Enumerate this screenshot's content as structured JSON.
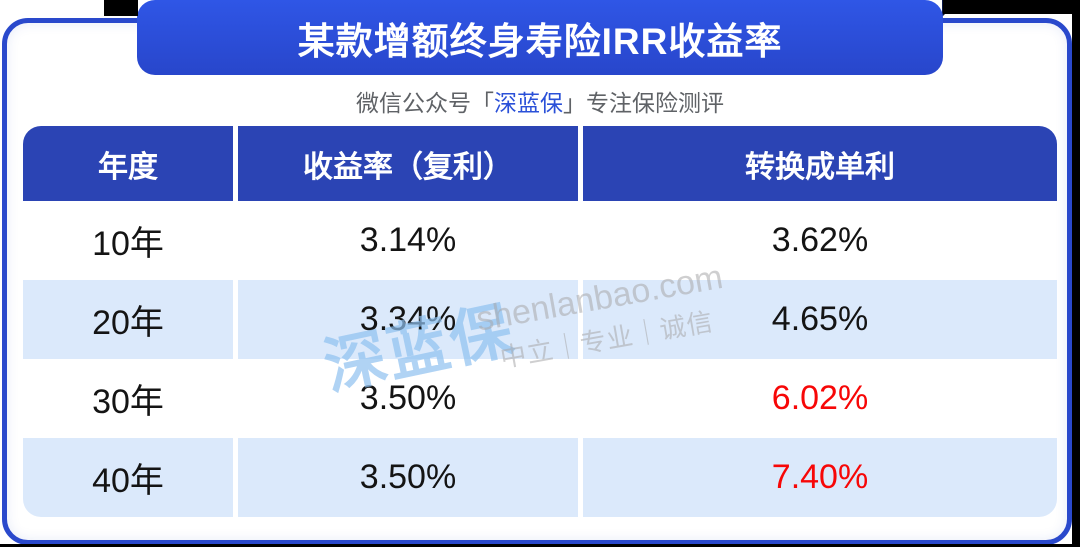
{
  "banner": {
    "title": "某款增额终身寿险IRR收益率"
  },
  "subtitle": {
    "prefix": "微信公众号「",
    "brand": "深蓝保",
    "suffix": "」专注保险测评"
  },
  "table": {
    "headers": [
      "年度",
      "收益率（复利）",
      "转换成单利"
    ],
    "rows": [
      {
        "year": "10年",
        "compound": "3.14%",
        "simple": "3.62%",
        "simple_highlight": false
      },
      {
        "year": "20年",
        "compound": "3.34%",
        "simple": "4.65%",
        "simple_highlight": false
      },
      {
        "year": "30年",
        "compound": "3.50%",
        "simple": "6.02%",
        "simple_highlight": true
      },
      {
        "year": "40年",
        "compound": "3.50%",
        "simple": "7.40%",
        "simple_highlight": true
      }
    ]
  },
  "watermark": {
    "logo": "深蓝保",
    "site": "shenlanbao.com",
    "slogan": "中立｜专业｜诚信"
  },
  "colors": {
    "banner_blue_top": "#2f56e6",
    "banner_blue_bottom": "#2846cb",
    "header_blue": "#2b44b4",
    "card_border_blue": "#2a49cc",
    "row_alt_blue": "#dbe9fb",
    "highlight_red": "#f70707",
    "brand_blue": "#2a50d8",
    "subtitle_gray": "#5f6266",
    "fold_navy": "#0a1747"
  },
  "chart_data": {
    "type": "table",
    "title": "某款增额终身寿险IRR收益率",
    "columns": [
      "年度",
      "收益率（复利）",
      "转换成单利"
    ],
    "rows": [
      [
        "10年",
        "3.14%",
        "3.62%"
      ],
      [
        "20年",
        "3.34%",
        "4.65%"
      ],
      [
        "30年",
        "3.50%",
        "6.02%"
      ],
      [
        "40年",
        "3.50%",
        "7.40%"
      ]
    ],
    "series": [
      {
        "name": "收益率（复利）%",
        "x": [
          10,
          20,
          30,
          40
        ],
        "values": [
          3.14,
          3.34,
          3.5,
          3.5
        ]
      },
      {
        "name": "转换成单利%",
        "x": [
          10,
          20,
          30,
          40
        ],
        "values": [
          3.62,
          4.65,
          6.02,
          7.4
        ]
      }
    ],
    "highlighted_cells": [
      {
        "row": "30年",
        "column": "转换成单利",
        "value": "6.02%",
        "color": "red"
      },
      {
        "row": "40年",
        "column": "转换成单利",
        "value": "7.40%",
        "color": "red"
      }
    ]
  }
}
